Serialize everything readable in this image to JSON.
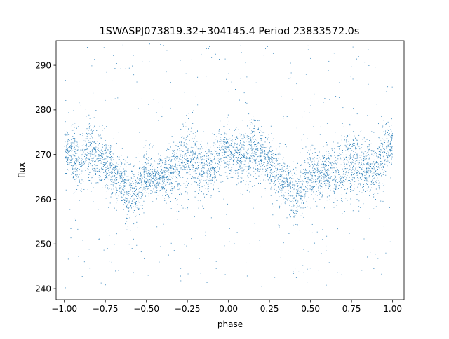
{
  "chart_data": {
    "type": "scatter",
    "title": "1SWASPJ073819.32+304145.4 Period 23833572.0s",
    "xlabel": "phase",
    "ylabel": "flux",
    "xlim": [
      -1.05,
      1.07
    ],
    "ylim": [
      237.5,
      295.5
    ],
    "xticks": [
      -1.0,
      -0.75,
      -0.5,
      -0.25,
      0.0,
      0.25,
      0.5,
      0.75,
      1.0
    ],
    "xtick_labels": [
      "−1.00",
      "−0.75",
      "−0.50",
      "−0.25",
      "0.00",
      "0.25",
      "0.50",
      "0.75",
      "1.00"
    ],
    "yticks": [
      240,
      250,
      260,
      270,
      280,
      290
    ],
    "ytick_labels": [
      "240",
      "250",
      "260",
      "270",
      "280",
      "290"
    ],
    "grid": false,
    "legend": "none",
    "marker_color": "#1f77b4",
    "series": [
      {
        "x_range": [
          -1.0,
          1.0
        ],
        "y_range": [
          240,
          295
        ],
        "phase_profile": {
          "phase": [
            -1.0,
            -0.95,
            -0.9,
            -0.85,
            -0.8,
            -0.75,
            -0.7,
            -0.65,
            -0.6,
            -0.55,
            -0.5,
            -0.45,
            -0.4,
            -0.35,
            -0.3,
            -0.25,
            -0.2,
            -0.15,
            -0.1,
            -0.05,
            0.0,
            0.05,
            0.1,
            0.15,
            0.2,
            0.25,
            0.3,
            0.35,
            0.4,
            0.45,
            0.5,
            0.55,
            0.6,
            0.65,
            0.7,
            0.75,
            0.8,
            0.85,
            0.9,
            0.95,
            1.0
          ],
          "median_flux": [
            272,
            270,
            269,
            271,
            270,
            268,
            266,
            264,
            261,
            262,
            266,
            265,
            265,
            266,
            267,
            270,
            268,
            267,
            266,
            271,
            271,
            270,
            269,
            271,
            270,
            268,
            266,
            264,
            261,
            262,
            266,
            265,
            266,
            266,
            267,
            270,
            268,
            267,
            266,
            271,
            272
          ],
          "scatter_width": [
            3,
            4,
            5,
            5,
            4,
            4,
            4,
            4,
            4,
            4,
            4,
            3,
            3,
            4,
            5,
            6,
            5,
            4,
            4,
            4,
            3,
            4,
            5,
            5,
            4,
            4,
            4,
            4,
            4,
            4,
            4,
            3,
            3,
            4,
            5,
            6,
            5,
            4,
            4,
            4,
            3
          ]
        }
      }
    ]
  }
}
